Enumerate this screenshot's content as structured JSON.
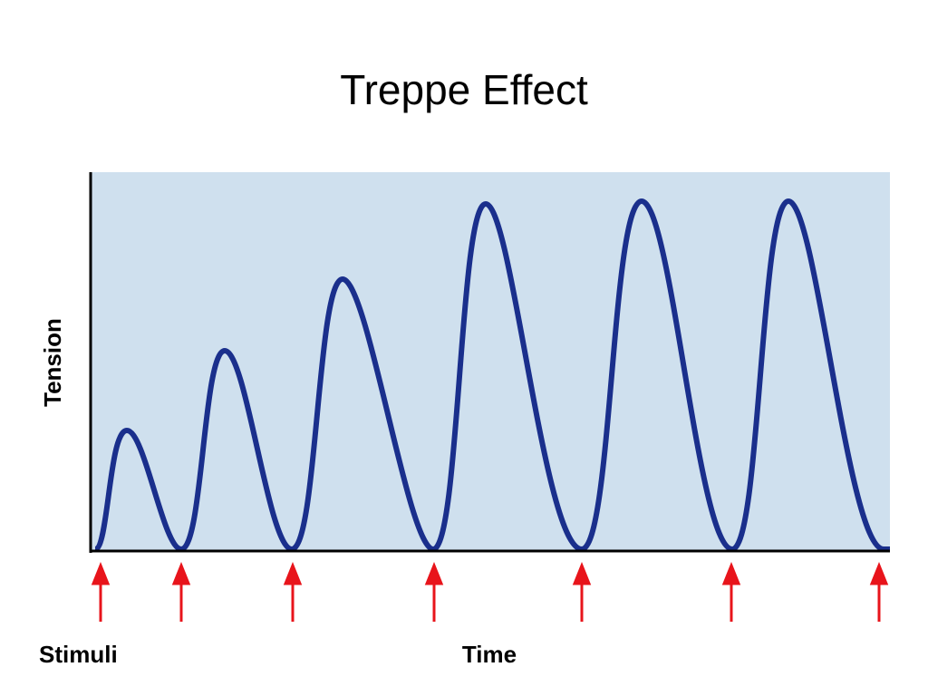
{
  "title": "Treppe Effect",
  "y_axis_label": "Tension",
  "stimuli_label": "Stimuli",
  "x_axis_label": "Time"
}
